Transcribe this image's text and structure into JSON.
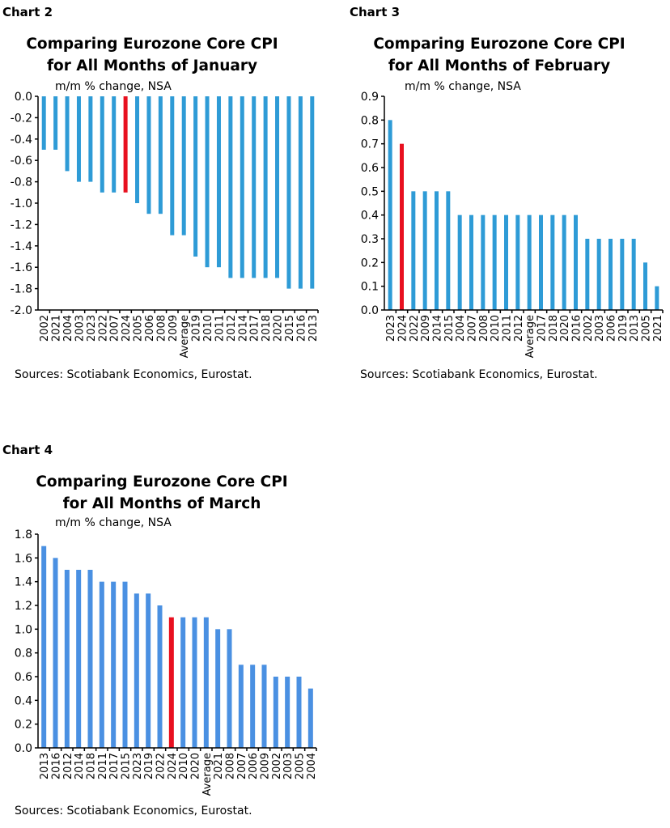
{
  "colors": {
    "bar_chart2_3": "#2e9bd6",
    "bar_chart4": "#4a90e2",
    "highlight": "#e8101f"
  },
  "chart_data": [
    {
      "type": "bar",
      "label": "Chart 2",
      "title_line1": "Comparing Eurozone Core CPI",
      "title_line2": "for All Months of January",
      "ylabel": "m/m % change, NSA",
      "source": "Sources: Scotiabank Economics, Eurostat.",
      "ylim": [
        -2.0,
        0.0
      ],
      "yticks": [
        0.0,
        -0.2,
        -0.4,
        -0.6,
        -0.8,
        -1.0,
        -1.2,
        -1.4,
        -1.6,
        -1.8,
        -2.0
      ],
      "highlight": "2024",
      "categories": [
        "2002",
        "2021",
        "2004",
        "2003",
        "2023",
        "2022",
        "2007",
        "2024",
        "2005",
        "2006",
        "2008",
        "2009",
        "Average",
        "2019",
        "2010",
        "2011",
        "2012",
        "2014",
        "2017",
        "2018",
        "2020",
        "2015",
        "2016",
        "2013"
      ],
      "values": [
        -0.5,
        -0.5,
        -0.7,
        -0.8,
        -0.8,
        -0.9,
        -0.9,
        -0.9,
        -1.0,
        -1.1,
        -1.1,
        -1.3,
        -1.3,
        -1.5,
        -1.6,
        -1.6,
        -1.7,
        -1.7,
        -1.7,
        -1.7,
        -1.7,
        -1.8,
        -1.8,
        -1.8
      ]
    },
    {
      "type": "bar",
      "label": "Chart 3",
      "title_line1": "Comparing Eurozone Core CPI",
      "title_line2": "for All Months of February",
      "ylabel": "m/m % change, NSA",
      "source": "Sources: Scotiabank Economics, Eurostat.",
      "ylim": [
        0.0,
        0.9
      ],
      "yticks": [
        0.9,
        0.8,
        0.7,
        0.6,
        0.5,
        0.4,
        0.3,
        0.2,
        0.1,
        0.0
      ],
      "highlight": "2024",
      "categories": [
        "2023",
        "2024",
        "2022",
        "2009",
        "2014",
        "2015",
        "2004",
        "2007",
        "2008",
        "2010",
        "2011",
        "2012",
        "Average",
        "2017",
        "2018",
        "2020",
        "2016",
        "2002",
        "2003",
        "2006",
        "2019",
        "2013",
        "2005",
        "2021"
      ],
      "values": [
        0.8,
        0.7,
        0.5,
        0.5,
        0.5,
        0.5,
        0.4,
        0.4,
        0.4,
        0.4,
        0.4,
        0.4,
        0.4,
        0.4,
        0.4,
        0.4,
        0.4,
        0.3,
        0.3,
        0.3,
        0.3,
        0.3,
        0.2,
        0.1
      ]
    },
    {
      "type": "bar",
      "label": "Chart 4",
      "title_line1": "Comparing Eurozone Core CPI",
      "title_line2": "for All Months of March",
      "ylabel": "m/m % change, NSA",
      "source": "Sources: Scotiabank Economics, Eurostat.",
      "ylim": [
        0.0,
        1.8
      ],
      "yticks": [
        1.8,
        1.6,
        1.4,
        1.2,
        1.0,
        0.8,
        0.6,
        0.4,
        0.2,
        0.0
      ],
      "highlight": "2024",
      "categories": [
        "2013",
        "2016",
        "2012",
        "2014",
        "2018",
        "2011",
        "2017",
        "2015",
        "2023",
        "2019",
        "2022",
        "2024",
        "2010",
        "2020",
        "Average",
        "2021",
        "2008",
        "2007",
        "2006",
        "2009",
        "2002",
        "2003",
        "2005",
        "2004"
      ],
      "values": [
        1.7,
        1.6,
        1.5,
        1.5,
        1.5,
        1.4,
        1.4,
        1.4,
        1.3,
        1.3,
        1.2,
        1.1,
        1.1,
        1.1,
        1.1,
        1.0,
        1.0,
        0.7,
        0.7,
        0.7,
        0.6,
        0.6,
        0.6,
        0.5
      ]
    }
  ]
}
